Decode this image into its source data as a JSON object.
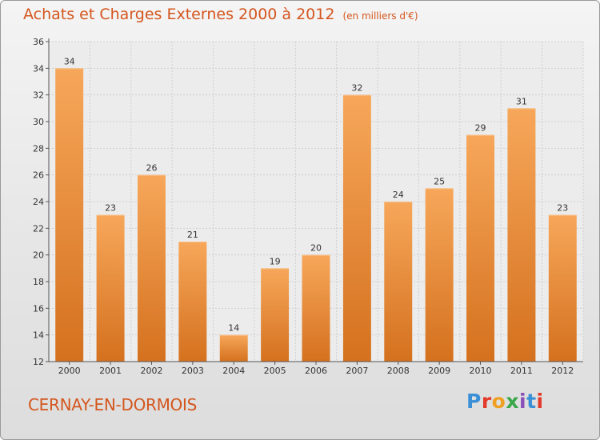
{
  "header": {
    "title": "Achats et Charges Externes 2000 à 2012",
    "subtitle": "(en milliers d'€)"
  },
  "footer": {
    "location": "CERNAY-EN-DORMOIS",
    "logo_text": "Proxiti"
  },
  "colors": {
    "bar_light": "#f7a75a",
    "bar_dark": "#d4711e",
    "title": "#d4561e",
    "grid": "#cfcfcf"
  },
  "chart_data": {
    "type": "bar",
    "title": "Achats et Charges Externes 2000 à 2012",
    "subtitle": "(en milliers d'€)",
    "xlabel": "",
    "ylabel": "",
    "categories": [
      "2000",
      "2001",
      "2002",
      "2003",
      "2004",
      "2005",
      "2006",
      "2007",
      "2008",
      "2009",
      "2010",
      "2011",
      "2012"
    ],
    "values": [
      34,
      23,
      26,
      21,
      14,
      19,
      20,
      32,
      24,
      25,
      29,
      31,
      23
    ],
    "ylim": [
      12,
      36
    ],
    "yticks": [
      12,
      14,
      16,
      18,
      20,
      22,
      24,
      26,
      28,
      30,
      32,
      34,
      36
    ],
    "grid": true,
    "data_labels": true
  }
}
